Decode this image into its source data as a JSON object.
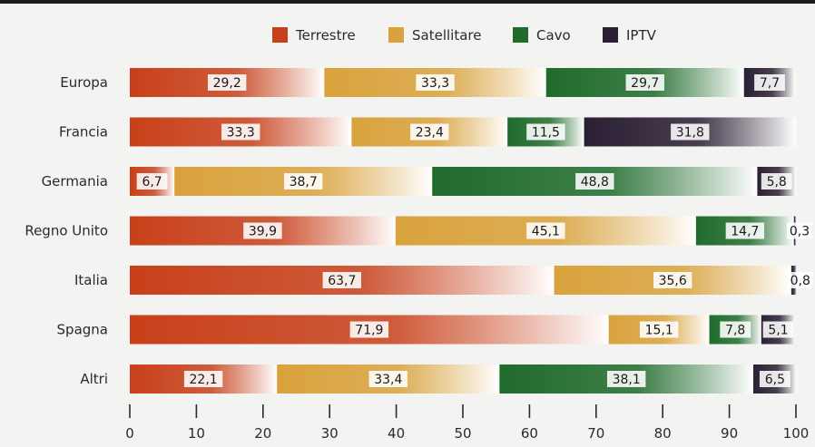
{
  "chart_data": {
    "type": "bar",
    "orientation": "horizontal",
    "stacked": true,
    "categories": [
      "Europa",
      "Francia",
      "Germania",
      "Regno Unito",
      "Italia",
      "Spagna",
      "Altri"
    ],
    "series": [
      {
        "name": "Terrestre",
        "color": "#c8401a",
        "values": [
          29.2,
          33.3,
          6.7,
          39.9,
          63.7,
          71.9,
          22.1
        ],
        "labels": [
          "29,2",
          "33,3",
          "6,7",
          "39,9",
          "63,7",
          "71,9",
          "22,1"
        ]
      },
      {
        "name": "Satellitare",
        "color": "#d9a23c",
        "values": [
          33.3,
          23.4,
          38.7,
          45.1,
          35.6,
          15.1,
          33.4
        ],
        "labels": [
          "33,3",
          "23,4",
          "38,7",
          "45,1",
          "35,6",
          "15,1",
          "33,4"
        ]
      },
      {
        "name": "Cavo",
        "color": "#1f6b2c",
        "values": [
          29.7,
          11.5,
          48.8,
          14.7,
          0,
          7.8,
          38.1
        ],
        "labels": [
          "29,7",
          "11,5",
          "48,8",
          "14,7",
          "",
          "7,8",
          "38,1"
        ]
      },
      {
        "name": "IPTV",
        "color": "#2a1f33",
        "values": [
          7.7,
          31.8,
          5.8,
          0.3,
          0.8,
          5.1,
          6.5
        ],
        "labels": [
          "7,7",
          "31,8",
          "5,8",
          "0,3",
          "0,8",
          "5,1",
          "6,5"
        ]
      }
    ],
    "xlim": [
      0,
      100
    ],
    "xticks": [
      "0",
      "10",
      "20",
      "30",
      "40",
      "50",
      "60",
      "70",
      "80",
      "90",
      "100"
    ],
    "legend_position": "top",
    "grid": false
  }
}
